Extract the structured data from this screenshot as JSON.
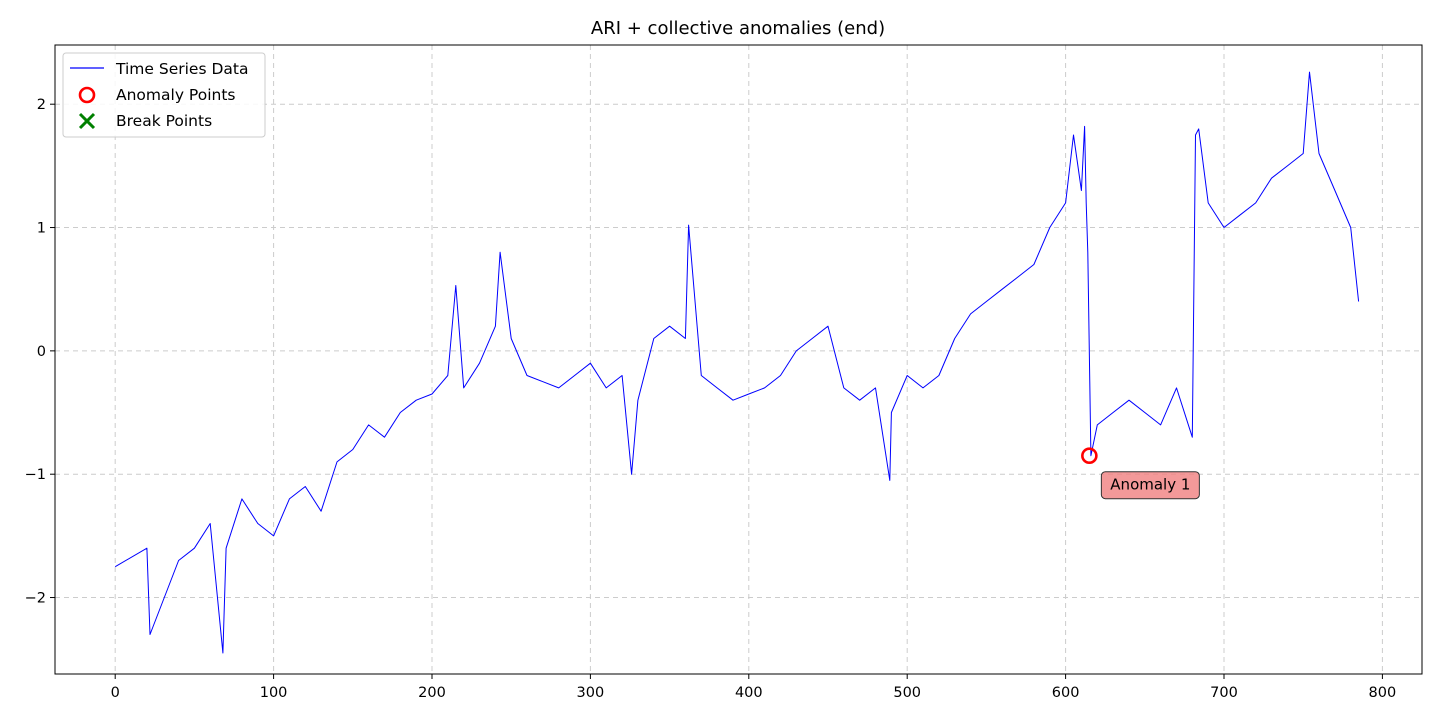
{
  "chart_data": {
    "type": "line",
    "title": "ARI + collective anomalies (end)",
    "xlabel": "",
    "ylabel": "",
    "xlim": [
      -38,
      825
    ],
    "ylim": [
      -2.62,
      2.48
    ],
    "xticks": [
      0,
      100,
      200,
      300,
      400,
      500,
      600,
      700,
      800
    ],
    "yticks": [
      -2,
      -1,
      0,
      1,
      2
    ],
    "grid": true,
    "legend_position": "top-left",
    "colors": {
      "series": "#0000ff",
      "anomaly": "#ff0000",
      "break": "#008000",
      "annotation_bg": "#f08080"
    },
    "legend": [
      {
        "label": "Time Series Data",
        "marker": "line"
      },
      {
        "label": "Anomaly Points",
        "marker": "circle"
      },
      {
        "label": "Break Points",
        "marker": "x"
      }
    ],
    "series": [
      {
        "name": "Time Series Data",
        "x": [
          0,
          20,
          22,
          40,
          50,
          60,
          68,
          70,
          80,
          90,
          100,
          110,
          120,
          130,
          140,
          150,
          160,
          170,
          180,
          190,
          200,
          210,
          215,
          220,
          230,
          240,
          243,
          250,
          260,
          270,
          280,
          290,
          300,
          310,
          320,
          326,
          330,
          340,
          350,
          360,
          362,
          370,
          380,
          390,
          400,
          410,
          420,
          430,
          440,
          450,
          460,
          470,
          480,
          489,
          490,
          500,
          510,
          520,
          530,
          540,
          550,
          560,
          570,
          580,
          590,
          600,
          605,
          610,
          612,
          613,
          614,
          616,
          620,
          630,
          640,
          650,
          660,
          670,
          680,
          682,
          684,
          690,
          700,
          710,
          720,
          730,
          740,
          750,
          754,
          760,
          770,
          780,
          785
        ],
        "y": [
          -1.75,
          -1.6,
          -2.3,
          -1.7,
          -1.6,
          -1.4,
          -2.45,
          -1.6,
          -1.2,
          -1.4,
          -1.5,
          -1.2,
          -1.1,
          -1.3,
          -0.9,
          -0.8,
          -0.6,
          -0.7,
          -0.5,
          -0.4,
          -0.35,
          -0.2,
          0.53,
          -0.3,
          -0.1,
          0.2,
          0.8,
          0.1,
          -0.2,
          -0.25,
          -0.3,
          -0.2,
          -0.1,
          -0.3,
          -0.2,
          -1.0,
          -0.4,
          0.1,
          0.2,
          0.1,
          1.02,
          -0.2,
          -0.3,
          -0.4,
          -0.35,
          -0.3,
          -0.2,
          0.0,
          0.1,
          0.2,
          -0.3,
          -0.4,
          -0.3,
          -1.05,
          -0.5,
          -0.2,
          -0.3,
          -0.2,
          0.1,
          0.3,
          0.4,
          0.5,
          0.6,
          0.7,
          1.0,
          1.2,
          1.75,
          1.3,
          1.82,
          1.2,
          0.8,
          -0.85,
          -0.6,
          -0.5,
          -0.4,
          -0.5,
          -0.6,
          -0.3,
          -0.7,
          1.75,
          1.8,
          1.2,
          1.0,
          1.1,
          1.2,
          1.4,
          1.5,
          1.6,
          2.26,
          1.6,
          1.3,
          1.0,
          0.4
        ]
      }
    ],
    "anomaly_points": [
      {
        "x": 615,
        "y": -0.85,
        "label": "Anomaly 1"
      }
    ],
    "break_points": []
  }
}
